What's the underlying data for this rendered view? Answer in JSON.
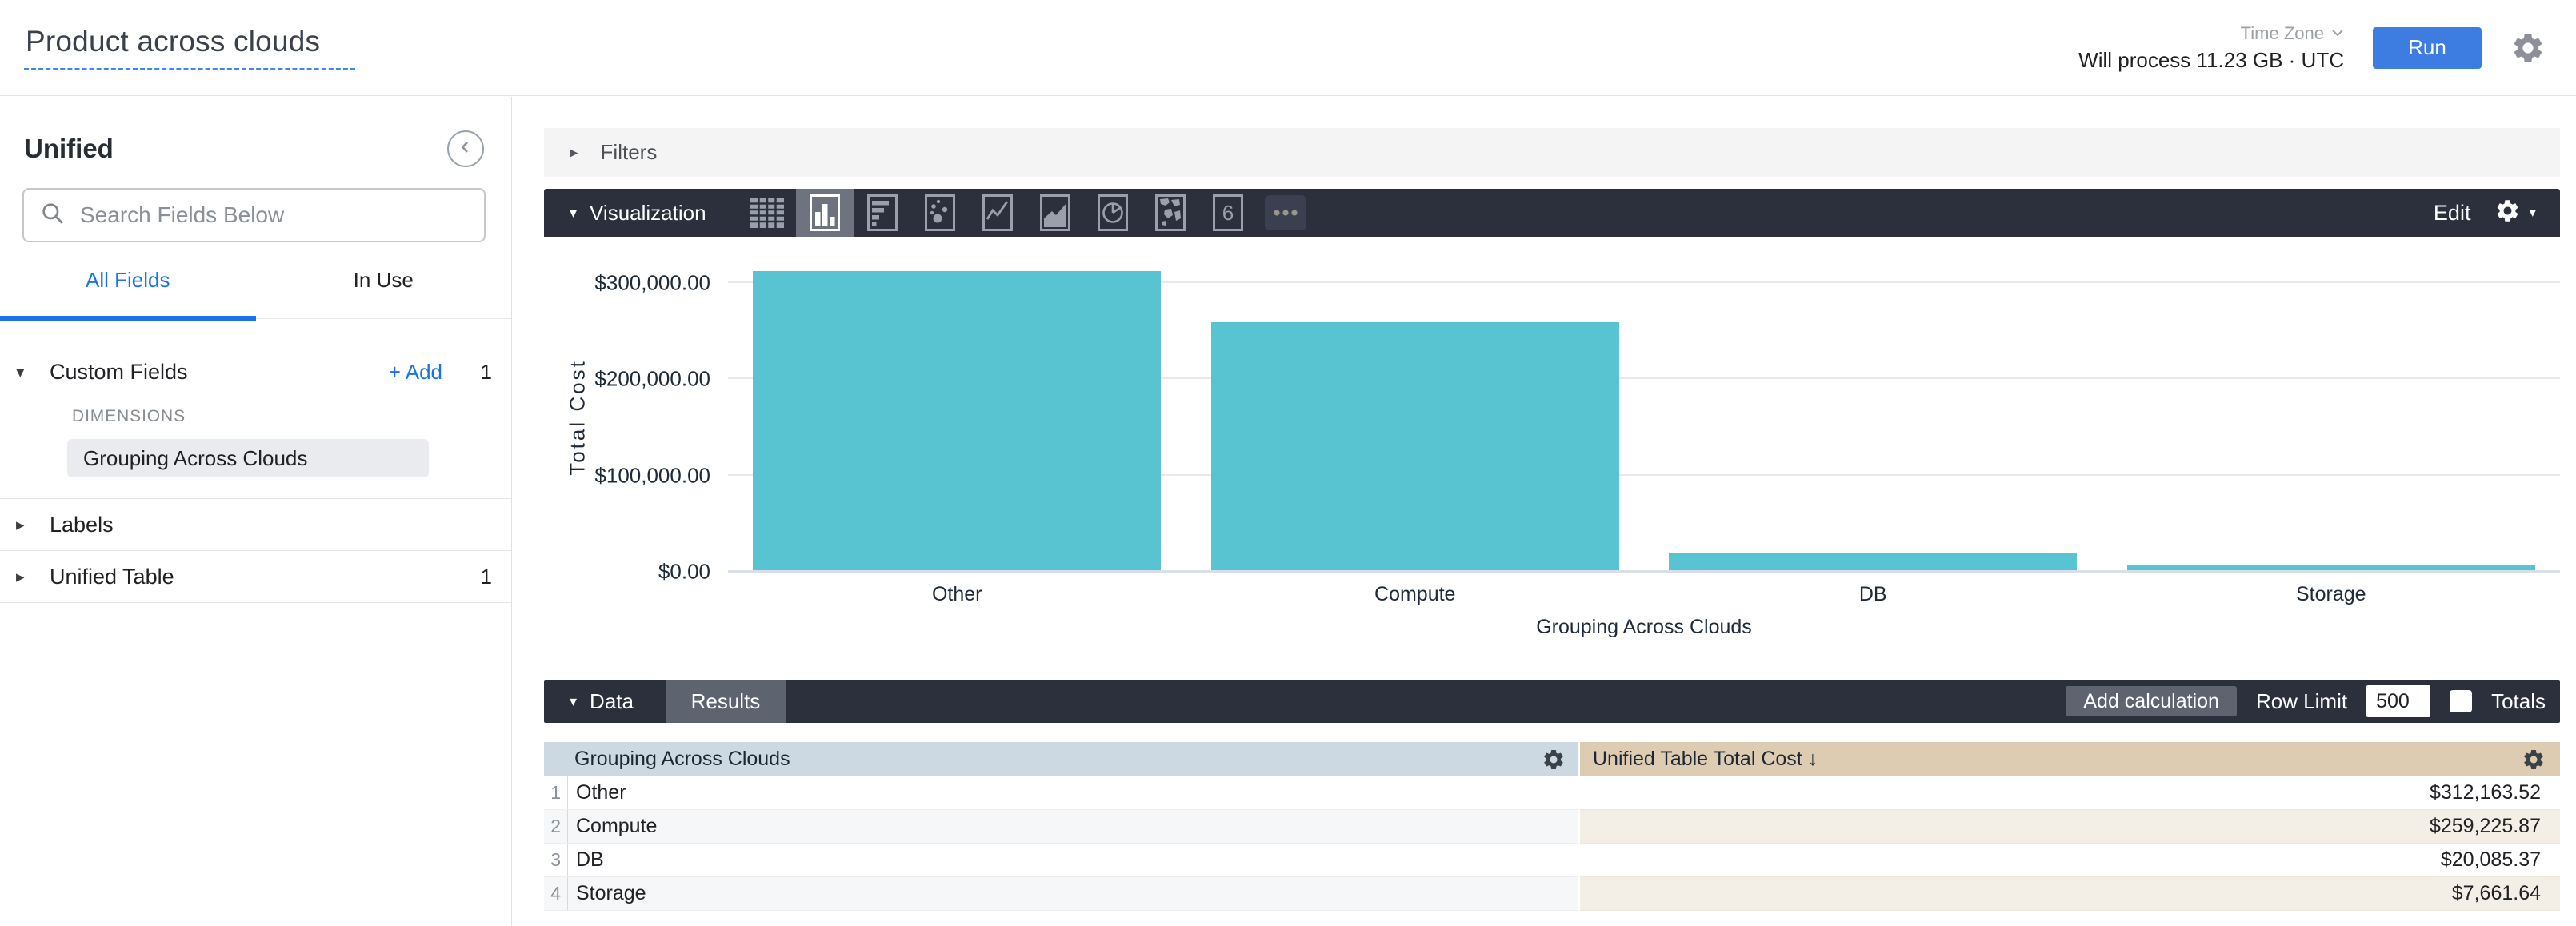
{
  "header": {
    "title": "Product across clouds",
    "process_text": "Will process 11.23 GB · UTC",
    "time_zone_label": "Time Zone",
    "run_label": "Run"
  },
  "sidebar": {
    "view_name": "Unified",
    "search_placeholder": "Search Fields Below",
    "tabs": {
      "all_fields": "All Fields",
      "in_use": "In Use"
    },
    "custom_fields": {
      "label": "Custom Fields",
      "add_label": "+ Add",
      "count": "1",
      "group_label": "DIMENSIONS",
      "items": [
        {
          "label": "Grouping Across Clouds"
        }
      ]
    },
    "labels_section": {
      "label": "Labels"
    },
    "unified_table_section": {
      "label": "Unified Table",
      "count": "1"
    }
  },
  "filters": {
    "label": "Filters"
  },
  "visualization": {
    "label": "Visualization",
    "edit_label": "Edit",
    "icons": [
      {
        "name": "table",
        "selected": false
      },
      {
        "name": "column",
        "selected": true
      },
      {
        "name": "bar",
        "selected": false
      },
      {
        "name": "scatter",
        "selected": false
      },
      {
        "name": "line",
        "selected": false
      },
      {
        "name": "area",
        "selected": false
      },
      {
        "name": "pie",
        "selected": false
      },
      {
        "name": "map",
        "selected": false
      },
      {
        "name": "single-value",
        "selected": false
      },
      {
        "name": "more",
        "selected": false
      }
    ]
  },
  "chart_data": {
    "type": "bar",
    "categories": [
      "Other",
      "Compute",
      "DB",
      "Storage"
    ],
    "values": [
      312163.52,
      259225.87,
      20085.37,
      7661.64
    ],
    "series_name": "Unified Table Total Cost",
    "title": "",
    "xlabel": "Grouping Across Clouds",
    "ylabel": "Total Cost",
    "ylim": [
      0,
      320000
    ],
    "yticks": [
      {
        "value": 0,
        "label": "$0.00"
      },
      {
        "value": 100000,
        "label": "$100,000.00"
      },
      {
        "value": 200000,
        "label": "$200,000.00"
      },
      {
        "value": 300000,
        "label": "$300,000.00"
      }
    ],
    "bar_color": "#58c4d1",
    "grid": true,
    "legend": "none"
  },
  "data_panel": {
    "label": "Data",
    "results_tab_label": "Results",
    "add_calculation_label": "Add calculation",
    "row_limit_label": "Row Limit",
    "row_limit_value": "500",
    "totals_label": "Totals",
    "totals_checked": false
  },
  "table": {
    "columns": [
      {
        "label": "Grouping Across Clouds"
      },
      {
        "label": "Unified Table Total Cost",
        "sort_arrow": "↓"
      }
    ],
    "rows": [
      {
        "num": "1",
        "dimension": "Other",
        "value": "$312,163.52"
      },
      {
        "num": "2",
        "dimension": "Compute",
        "value": "$259,225.87"
      },
      {
        "num": "3",
        "dimension": "DB",
        "value": "$20,085.37"
      },
      {
        "num": "4",
        "dimension": "Storage",
        "value": "$7,661.64"
      }
    ]
  },
  "colors": {
    "accent_blue": "#1a73e8",
    "run_button": "#3d7ce0",
    "toolbar_dark": "#2b303c",
    "toolbar_selected": "#6d7480",
    "toolbar_button": "#5d6470",
    "bar_teal": "#58c4d1",
    "dimension_header": "#ccd8e2",
    "measure_header": "#ddcbb2",
    "dimension_row_alt": "#f5f7f9",
    "measure_row_alt": "#f3eee6"
  }
}
